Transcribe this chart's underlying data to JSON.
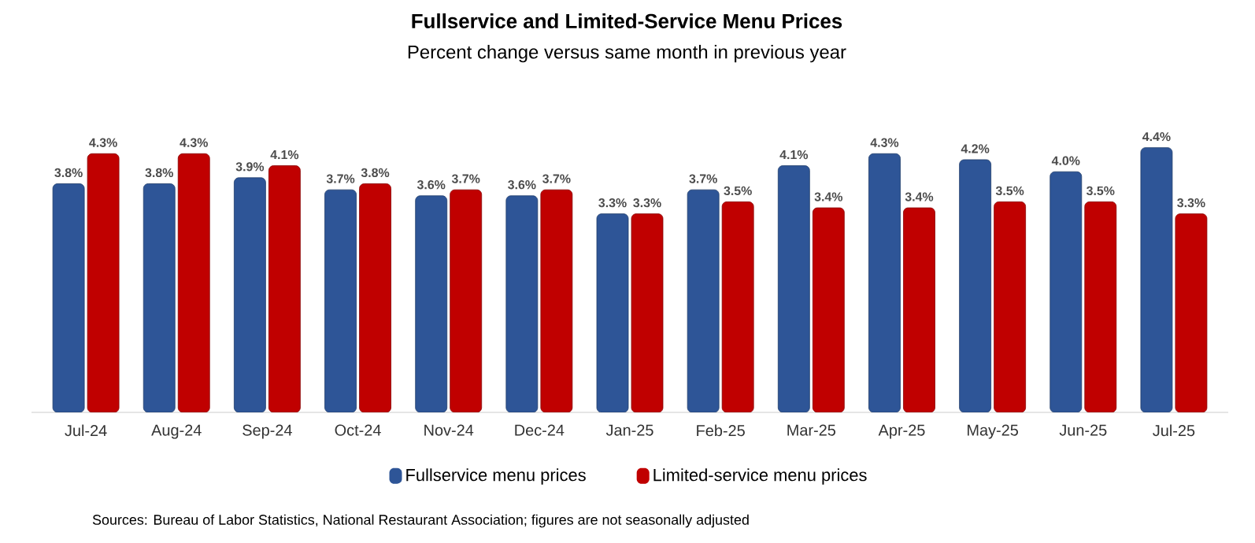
{
  "chart_data": {
    "type": "bar",
    "title": "Fullservice and Limited-Service Menu Prices",
    "subtitle": "Percent change versus same month in previous year",
    "categories": [
      "Jul-24",
      "Aug-24",
      "Sep-24",
      "Oct-24",
      "Nov-24",
      "Dec-24",
      "Jan-25",
      "Feb-25",
      "Mar-25",
      "Apr-25",
      "May-25",
      "Jun-25",
      "Jul-25"
    ],
    "series": [
      {
        "name": "Fullservice menu prices",
        "color": "#2e5597",
        "values": [
          3.8,
          3.8,
          3.9,
          3.7,
          3.6,
          3.6,
          3.3,
          3.7,
          4.1,
          4.3,
          4.2,
          4.0,
          4.4
        ],
        "value_labels": [
          "3.8%",
          "3.8%",
          "3.9%",
          "3.7%",
          "3.6%",
          "3.6%",
          "3.3%",
          "3.7%",
          "4.1%",
          "4.3%",
          "4.2%",
          "4.0%",
          "4.4%"
        ]
      },
      {
        "name": "Limited-service menu prices",
        "color": "#c00000",
        "values": [
          4.3,
          4.3,
          4.1,
          3.8,
          3.7,
          3.7,
          3.3,
          3.5,
          3.4,
          3.4,
          3.5,
          3.5,
          3.3
        ],
        "value_labels": [
          "4.3%",
          "4.3%",
          "4.1%",
          "3.8%",
          "3.7%",
          "3.7%",
          "3.3%",
          "3.5%",
          "3.4%",
          "3.4%",
          "3.5%",
          "3.5%",
          "3.3%"
        ]
      }
    ],
    "tick_labels": "x",
    "legend": "bottom",
    "annotations": [
      "Sources: Bureau of Labor Statistics, National Restaurant Association; figures are not seasonally adjusted"
    ]
  }
}
